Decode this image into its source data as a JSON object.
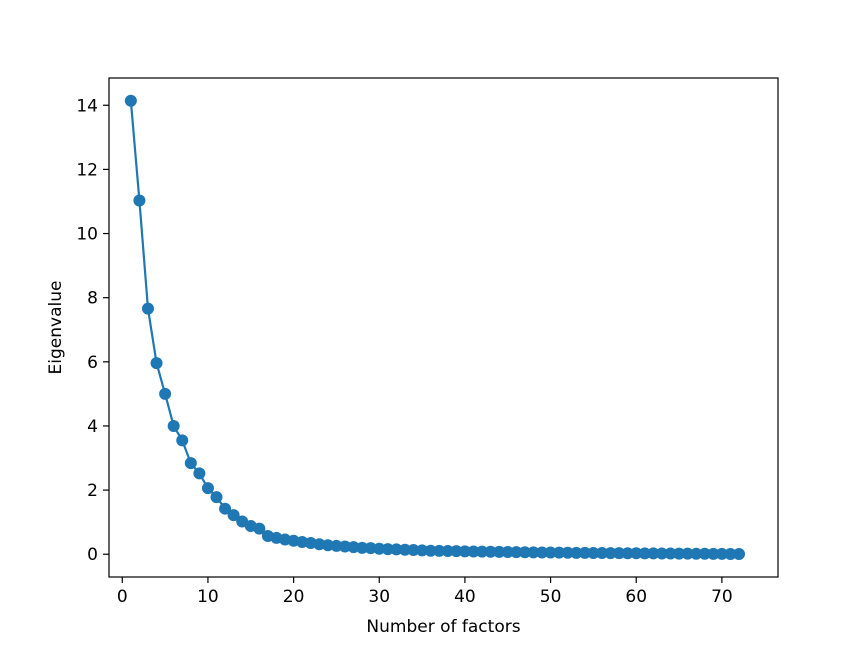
{
  "chart_data": {
    "type": "line",
    "title": "",
    "xlabel": "Number of factors",
    "ylabel": "Eigenvalue",
    "xlim": [
      -1.55,
      76.55
    ],
    "ylim": [
      -0.71,
      14.85
    ],
    "xticks": [
      0,
      10,
      20,
      30,
      40,
      50,
      60,
      70
    ],
    "yticks": [
      0,
      2,
      4,
      6,
      8,
      10,
      12,
      14
    ],
    "grid": false,
    "legend": "none",
    "series": [
      {
        "color": "#1f77b4",
        "marker": "circle",
        "x": [
          1,
          2,
          3,
          4,
          5,
          6,
          7,
          8,
          9,
          10,
          11,
          12,
          13,
          14,
          15,
          16,
          17,
          18,
          19,
          20,
          21,
          22,
          23,
          24,
          25,
          26,
          27,
          28,
          29,
          30,
          31,
          32,
          33,
          34,
          35,
          36,
          37,
          38,
          39,
          40,
          41,
          42,
          43,
          44,
          45,
          46,
          47,
          48,
          49,
          50,
          51,
          52,
          53,
          54,
          55,
          56,
          57,
          58,
          59,
          60,
          61,
          62,
          63,
          64,
          65,
          66,
          67,
          68,
          69,
          70,
          71,
          72
        ],
        "y": [
          14.14,
          11.03,
          7.66,
          5.96,
          5.0,
          4.0,
          3.55,
          2.84,
          2.52,
          2.06,
          1.78,
          1.42,
          1.22,
          1.02,
          0.88,
          0.8,
          0.57,
          0.51,
          0.46,
          0.42,
          0.38,
          0.35,
          0.31,
          0.28,
          0.26,
          0.24,
          0.22,
          0.2,
          0.19,
          0.17,
          0.16,
          0.15,
          0.14,
          0.13,
          0.12,
          0.11,
          0.105,
          0.1,
          0.095,
          0.09,
          0.085,
          0.08,
          0.076,
          0.072,
          0.068,
          0.064,
          0.061,
          0.058,
          0.055,
          0.052,
          0.049,
          0.046,
          0.044,
          0.042,
          0.04,
          0.038,
          0.036,
          0.034,
          0.032,
          0.03,
          0.028,
          0.026,
          0.024,
          0.022,
          0.02,
          0.018,
          0.016,
          0.014,
          0.012,
          0.01,
          0.008,
          0.006
        ]
      }
    ]
  }
}
